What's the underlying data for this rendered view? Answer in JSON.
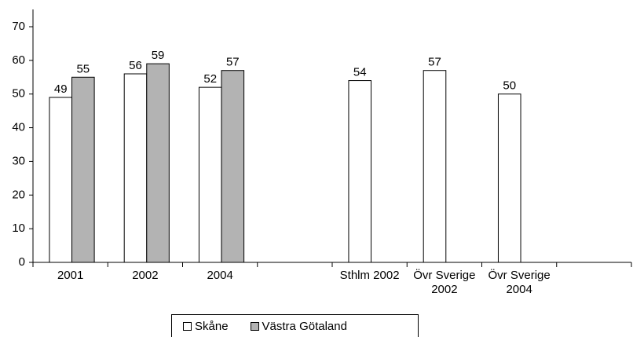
{
  "chart_data": {
    "type": "bar",
    "categories": [
      "2001",
      "2002",
      "2004",
      null,
      "Sthlm 2002",
      "Övr Sverige 2002",
      "Övr Sverige 2004",
      null
    ],
    "series": [
      {
        "name": "Skåne",
        "color": "#ffffff",
        "values": [
          49,
          56,
          52,
          null,
          54,
          57,
          50,
          null
        ]
      },
      {
        "name": "Västra Götaland",
        "color": "#b3b3b3",
        "values": [
          55,
          59,
          57,
          null,
          null,
          null,
          null,
          null
        ]
      }
    ],
    "ylim": [
      0,
      70
    ],
    "yticks": [
      0,
      10,
      20,
      30,
      40,
      50,
      60,
      70
    ],
    "grid": false,
    "legend": "bottom"
  }
}
